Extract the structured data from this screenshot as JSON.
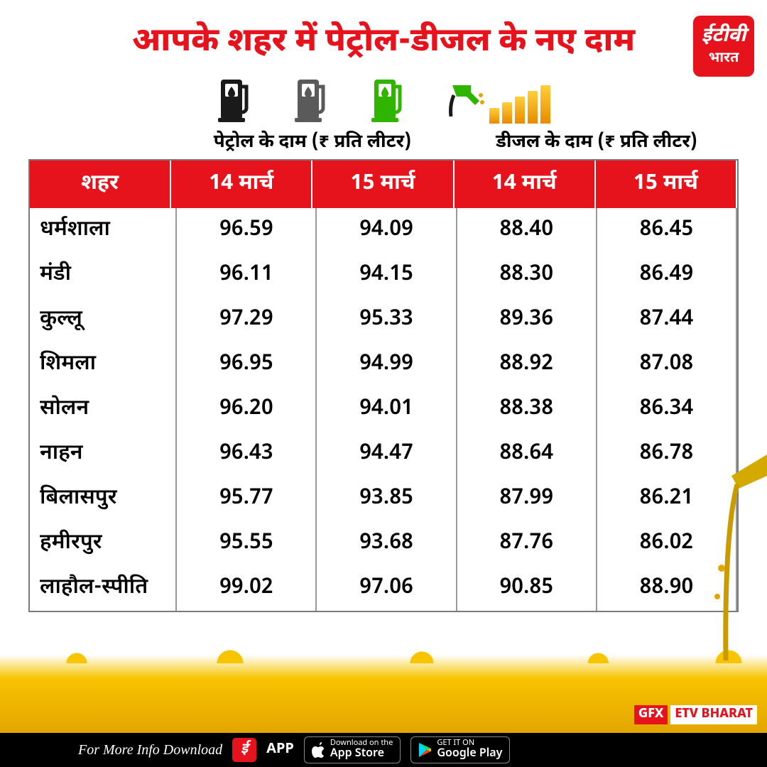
{
  "title": "आपके शहर में पेट्रोल-डीजल के नए दाम",
  "logo": {
    "line1": "ईटीवी",
    "line2": "भारत"
  },
  "subheader_petrol": "पेट्रोल के दाम (₹ प्रति लीटर)",
  "subheader_diesel": "डीजल के दाम (₹ प्रति लीटर)",
  "columns": [
    "शहर",
    "14 मार्च",
    "15 मार्च",
    "14 मार्च",
    "15 मार्च"
  ],
  "rows": [
    {
      "city": "धर्मशाला",
      "p14": "96.59",
      "p15": "94.09",
      "d14": "88.40",
      "d15": "86.45"
    },
    {
      "city": "मंडी",
      "p14": "96.11",
      "p15": "94.15",
      "d14": "88.30",
      "d15": "86.49"
    },
    {
      "city": "कुल्लू",
      "p14": "97.29",
      "p15": "95.33",
      "d14": "89.36",
      "d15": "87.44"
    },
    {
      "city": "शिमला",
      "p14": "96.95",
      "p15": "94.99",
      "d14": "88.92",
      "d15": "87.08"
    },
    {
      "city": "सोलन",
      "p14": "96.20",
      "p15": "94.01",
      "d14": "88.38",
      "d15": "86.34"
    },
    {
      "city": "नाहन",
      "p14": "96.43",
      "p15": "94.47",
      "d14": "88.64",
      "d15": "86.78"
    },
    {
      "city": "बिलासपुर",
      "p14": "95.77",
      "p15": "93.85",
      "d14": "87.99",
      "d15": "86.21"
    },
    {
      "city": "हमीरपुर",
      "p14": "95.55",
      "p15": "93.68",
      "d14": "87.76",
      "d15": "86.02"
    },
    {
      "city": "लाहौल-स्पीति",
      "p14": "99.02",
      "p15": "97.06",
      "d14": "90.85",
      "d15": "88.90"
    }
  ],
  "gfx": {
    "left": "GFX",
    "right": "ETV BHARAT"
  },
  "footer": {
    "text": "For More Info Download",
    "app": "APP",
    "appstore_small": "Download on the",
    "appstore_big": "App Store",
    "play_small": "GET IT ON",
    "play_big": "Google Play"
  },
  "styling": {
    "header_bg": "#e6121c",
    "header_fg": "#ffffff",
    "title_color": "#e6121c",
    "body_text": "#000000",
    "border_color": "#7a7a7a",
    "splash_color": "#f7c400",
    "title_fontsize": 46,
    "header_fontsize": 30,
    "cell_fontsize": 30,
    "pump_colors": [
      "#1a1a1a",
      "#5a5a5a",
      "#2fb500"
    ],
    "chart_bar_heights": [
      22,
      30,
      38,
      46,
      54
    ]
  }
}
